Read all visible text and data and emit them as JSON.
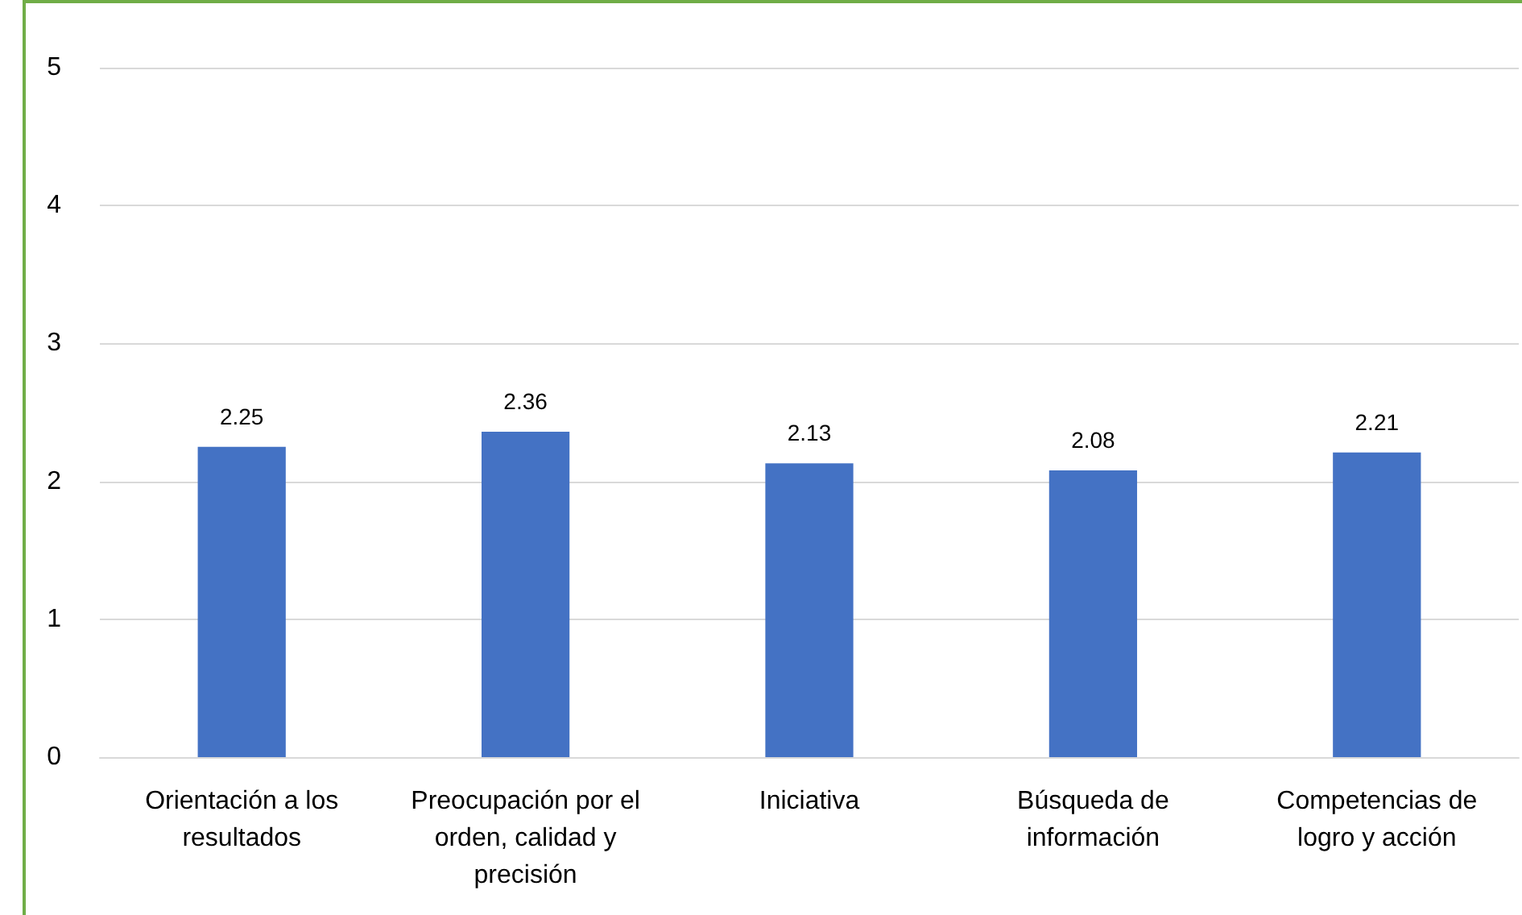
{
  "chart_data": {
    "type": "bar",
    "categories": [
      "Orientación a los resultados",
      "Preocupación por el orden, calidad y precisión",
      "Iniciativa",
      "Búsqueda de información",
      "Competencias de logro y acción"
    ],
    "values": [
      2.25,
      2.36,
      2.13,
      2.08,
      2.21
    ],
    "color": "#4472c4",
    "ylim": [
      0,
      5
    ],
    "yticks": [
      0,
      1,
      2,
      3,
      4,
      5
    ],
    "grid": "y",
    "data_labels": true
  }
}
